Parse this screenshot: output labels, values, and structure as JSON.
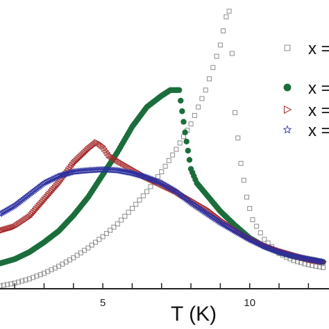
{
  "chart_data": {
    "type": "scatter",
    "xlabel": "T (K)",
    "ylabel": "",
    "title": "",
    "xlim": [
      1.5,
      12.7
    ],
    "ylim": [
      0,
      1.0
    ],
    "x_ticks": [
      2,
      3,
      4,
      5,
      6,
      7,
      8,
      9,
      10,
      11,
      12
    ],
    "x_tick_labels": [
      {
        "x": 5,
        "label": "5"
      },
      {
        "x": 10,
        "label": "10"
      }
    ],
    "legend": {
      "placement": "top-right",
      "entries": [
        "x =",
        "x =",
        "x =",
        "x ="
      ]
    },
    "series": [
      {
        "marker": "open-square",
        "color": "#8c8c8c",
        "x": [
          1.5,
          2.0,
          2.5,
          3.0,
          3.5,
          4.0,
          4.5,
          5.0,
          5.5,
          6.0,
          6.5,
          7.0,
          7.5,
          8.0,
          8.5,
          9.0,
          9.2,
          9.3,
          9.4,
          9.5,
          9.7,
          9.9,
          10.1,
          10.5,
          11.0,
          11.5,
          12.0,
          12.5
        ],
        "y": [
          0.005,
          0.015,
          0.03,
          0.05,
          0.075,
          0.105,
          0.14,
          0.18,
          0.225,
          0.28,
          0.34,
          0.41,
          0.49,
          0.58,
          0.7,
          0.86,
          0.96,
          0.98,
          0.83,
          0.62,
          0.44,
          0.32,
          0.24,
          0.17,
          0.12,
          0.095,
          0.08,
          0.07
        ]
      },
      {
        "marker": "filled-circle",
        "color": "#1b6e3c",
        "x": [
          1.5,
          2.0,
          2.5,
          3.0,
          3.5,
          4.0,
          4.5,
          5.0,
          5.5,
          6.0,
          6.5,
          7.0,
          7.3,
          7.6,
          7.8,
          8.0,
          8.2,
          8.6,
          9.0,
          9.5,
          10.0,
          10.5,
          11.0,
          11.5,
          12.0,
          12.5
        ],
        "y": [
          0.085,
          0.1,
          0.125,
          0.16,
          0.2,
          0.255,
          0.32,
          0.4,
          0.48,
          0.57,
          0.64,
          0.68,
          0.7,
          0.7,
          0.55,
          0.42,
          0.37,
          0.32,
          0.27,
          0.22,
          0.175,
          0.145,
          0.125,
          0.11,
          0.1,
          0.09
        ]
      },
      {
        "marker": "open-triangle-right",
        "color": "#a52a2a",
        "x": [
          1.5,
          2.0,
          2.5,
          3.0,
          3.5,
          4.0,
          4.5,
          4.8,
          5.0,
          5.2,
          5.5,
          6.0,
          6.5,
          7.0,
          7.5,
          8.0,
          8.5,
          9.0,
          9.5,
          10.0,
          10.5,
          11.0,
          11.5,
          12.0,
          12.5
        ],
        "y": [
          0.2,
          0.215,
          0.25,
          0.31,
          0.37,
          0.44,
          0.49,
          0.515,
          0.5,
          0.47,
          0.45,
          0.42,
          0.39,
          0.365,
          0.34,
          0.31,
          0.28,
          0.24,
          0.205,
          0.175,
          0.15,
          0.13,
          0.115,
          0.1,
          0.09
        ]
      },
      {
        "marker": "open-star",
        "color": "#2b2f9e",
        "x": [
          1.5,
          2.0,
          2.5,
          3.0,
          3.5,
          4.0,
          4.5,
          5.0,
          5.5,
          6.0,
          6.5,
          7.0,
          7.5,
          8.0,
          8.5,
          9.0,
          9.5,
          10.0,
          10.5,
          11.0,
          11.5,
          12.0,
          12.5
        ],
        "y": [
          0.26,
          0.29,
          0.33,
          0.37,
          0.395,
          0.41,
          0.415,
          0.418,
          0.415,
          0.405,
          0.39,
          0.37,
          0.34,
          0.3,
          0.265,
          0.23,
          0.2,
          0.17,
          0.145,
          0.125,
          0.11,
          0.1,
          0.09
        ]
      }
    ]
  }
}
